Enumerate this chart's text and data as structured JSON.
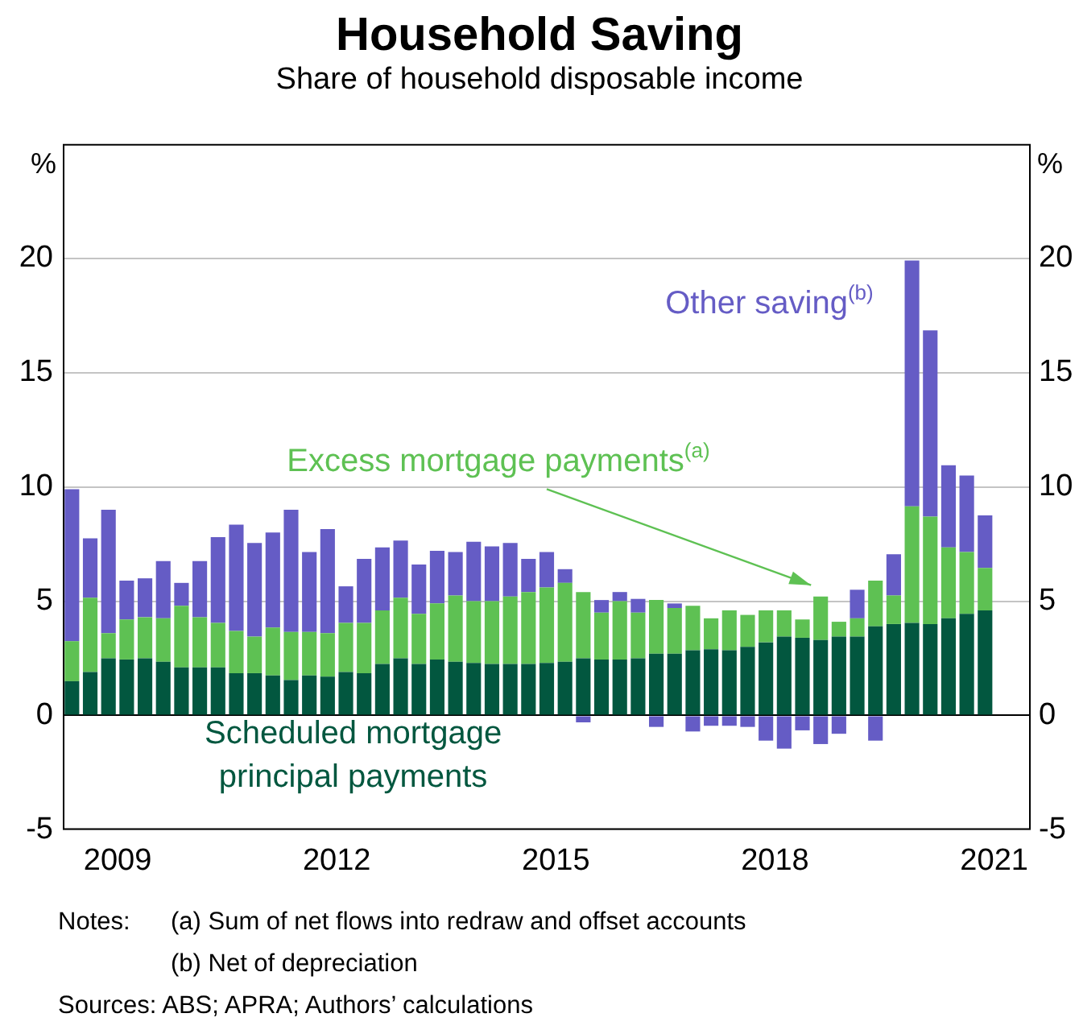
{
  "chart_data": {
    "type": "bar",
    "title": "Household Saving",
    "subtitle": "Share of household disposable income",
    "ylabel": "%",
    "y2label": "%",
    "annotations": [
      "Notes:",
      "(a) Sum of net flows into redraw and offset accounts",
      "(b) Net of depreciation",
      "Sources: ABS; APRA; Authors’ calculations"
    ],
    "categories": [
      null,
      null,
      "2009",
      null,
      null,
      null,
      null,
      null,
      null,
      null,
      null,
      null,
      null,
      null,
      "2012",
      null,
      null,
      null,
      null,
      null,
      null,
      null,
      null,
      null,
      null,
      null,
      "2015",
      null,
      null,
      null,
      null,
      null,
      null,
      null,
      null,
      null,
      null,
      null,
      "2018",
      null,
      null,
      null,
      null,
      null,
      null,
      null,
      null,
      null,
      null,
      null,
      "2021",
      null,
      null
    ],
    "stacked": true,
    "series": [
      {
        "name": "Scheduled mortgage principal payments",
        "color": "#02573f",
        "values": [
          1.5,
          1.9,
          2.5,
          2.45,
          2.5,
          2.35,
          2.1,
          2.1,
          2.1,
          1.85,
          1.85,
          1.75,
          1.55,
          1.75,
          1.7,
          1.9,
          1.85,
          2.25,
          2.5,
          2.25,
          2.45,
          2.35,
          2.3,
          2.25,
          2.25,
          2.25,
          2.3,
          2.35,
          2.5,
          2.45,
          2.45,
          2.5,
          2.7,
          2.7,
          2.85,
          2.9,
          2.85,
          3.0,
          3.2,
          3.45,
          3.4,
          3.3,
          3.45,
          3.45,
          3.9,
          4.0,
          4.05,
          4.0,
          4.25,
          4.45,
          4.6,
          null,
          null
        ]
      },
      {
        "name": "Excess mortgage payments$^{(a)}$",
        "color": "#5ec153",
        "values": [
          1.75,
          3.25,
          1.1,
          1.75,
          1.8,
          1.9,
          2.7,
          2.2,
          1.95,
          1.85,
          1.6,
          2.1,
          2.1,
          1.9,
          1.9,
          2.15,
          2.2,
          2.35,
          2.65,
          2.2,
          2.45,
          2.9,
          2.7,
          2.75,
          2.95,
          3.15,
          3.3,
          3.45,
          2.9,
          2.05,
          2.55,
          2.0,
          2.35,
          2.0,
          1.95,
          1.35,
          1.75,
          1.4,
          1.4,
          1.15,
          0.8,
          1.9,
          0.65,
          0.8,
          2.0,
          1.25,
          5.1,
          4.7,
          3.1,
          2.7,
          1.85,
          null,
          null
        ]
      },
      {
        "name": "Other saving$^{(b)}$",
        "color": "#655cc5",
        "values": [
          6.65,
          2.6,
          5.4,
          1.7,
          1.7,
          2.5,
          1.0,
          2.45,
          3.75,
          4.65,
          4.1,
          4.15,
          5.35,
          3.5,
          4.55,
          1.6,
          2.8,
          2.75,
          2.5,
          2.15,
          2.3,
          1.9,
          2.6,
          2.4,
          2.35,
          1.45,
          1.55,
          0.6,
          -0.3,
          0.55,
          0.4,
          0.6,
          -0.5,
          0.2,
          -0.7,
          -0.45,
          -0.45,
          -0.5,
          -1.1,
          -1.45,
          -0.65,
          -1.25,
          -0.8,
          1.25,
          -1.1,
          1.8,
          10.75,
          8.15,
          3.6,
          3.35,
          2.3,
          null,
          null
        ]
      }
    ],
    "ylim": [
      -5,
      25
    ],
    "yticks": [
      -5,
      0,
      5,
      10,
      15,
      20
    ],
    "y2lim": [
      -5,
      25
    ],
    "y2ticks": [
      -5,
      0,
      5,
      10,
      15,
      20
    ],
    "grid": "y"
  }
}
